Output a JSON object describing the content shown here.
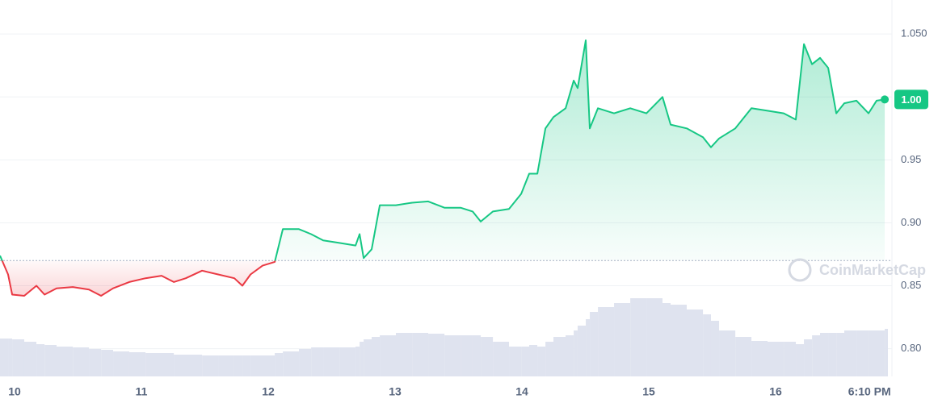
{
  "chart_data": {
    "type": "line",
    "x": [
      9.885,
      9.949,
      9.981,
      10.076,
      10.172,
      10.236,
      10.331,
      10.459,
      10.586,
      10.682,
      10.777,
      10.904,
      11.032,
      11.159,
      11.255,
      11.35,
      11.478,
      11.605,
      11.732,
      11.796,
      11.86,
      11.955,
      12.051,
      12.115,
      12.242,
      12.338,
      12.433,
      12.561,
      12.688,
      12.72,
      12.752,
      12.815,
      12.879,
      13.006,
      13.134,
      13.261,
      13.389,
      13.516,
      13.611,
      13.675,
      13.771,
      13.898,
      13.994,
      14.057,
      14.121,
      14.185,
      14.248,
      14.344,
      14.408,
      14.439,
      14.503,
      14.535,
      14.599,
      14.726,
      14.854,
      14.981,
      15.108,
      15.172,
      15.299,
      15.427,
      15.49,
      15.554,
      15.682,
      15.809,
      15.936,
      16.064,
      16.159,
      16.223,
      16.287,
      16.35,
      16.414,
      16.478,
      16.541,
      16.637,
      16.732,
      16.796,
      16.86
    ],
    "values": [
      0.874,
      0.859,
      0.843,
      0.842,
      0.85,
      0.843,
      0.848,
      0.849,
      0.847,
      0.842,
      0.848,
      0.853,
      0.856,
      0.858,
      0.853,
      0.856,
      0.862,
      0.859,
      0.856,
      0.85,
      0.859,
      0.866,
      0.869,
      0.895,
      0.895,
      0.891,
      0.886,
      0.884,
      0.882,
      0.891,
      0.872,
      0.879,
      0.914,
      0.914,
      0.916,
      0.917,
      0.912,
      0.912,
      0.909,
      0.901,
      0.909,
      0.911,
      0.923,
      0.939,
      0.939,
      0.975,
      0.984,
      0.991,
      1.013,
      1.007,
      1.045,
      0.975,
      0.991,
      0.987,
      0.991,
      0.987,
      1.0,
      0.978,
      0.975,
      0.968,
      0.96,
      0.967,
      0.975,
      0.991,
      0.989,
      0.987,
      0.982,
      1.042,
      1.026,
      1.031,
      1.023,
      0.987,
      0.995,
      0.997,
      0.987,
      0.997,
      0.998
    ],
    "volume": [
      47,
      47,
      46,
      43,
      40,
      39,
      37,
      36,
      34,
      33,
      31,
      30,
      29,
      29,
      27,
      27,
      26,
      26,
      26,
      26,
      26,
      26,
      29,
      31,
      34,
      36,
      36,
      36,
      37,
      43,
      46,
      49,
      51,
      54,
      54,
      53,
      51,
      51,
      51,
      49,
      43,
      37,
      37,
      39,
      37,
      43,
      49,
      51,
      57,
      63,
      71,
      80,
      86,
      91,
      97,
      97,
      91,
      89,
      83,
      77,
      69,
      57,
      49,
      44,
      43,
      43,
      40,
      46,
      51,
      54,
      54,
      54,
      57,
      57,
      57,
      57,
      59
    ],
    "y2lim": [
      0,
      100
    ],
    "color": "#16c784",
    "down_color": "#ea3943",
    "volume_color": "#dfe3ef",
    "baseline": 0.87,
    "price_label": "1.00",
    "watermark": "CoinMarketCap",
    "xlim": [
      9.885,
      16.885
    ],
    "xticks": [
      10,
      11,
      12,
      13,
      14,
      15,
      16,
      {
        "value": 16.74,
        "label": "6:10 PM"
      }
    ],
    "ylim": [
      0.778,
      1.077
    ],
    "yticks": [
      {
        "value": 0.8,
        "label": "0.80"
      },
      0.85,
      {
        "value": 0.9,
        "label": "0.90"
      },
      0.95,
      {
        "value": 1.0,
        "label": "1.00"
      },
      {
        "value": 1.05,
        "label": "1.050"
      }
    ],
    "grid": true
  }
}
